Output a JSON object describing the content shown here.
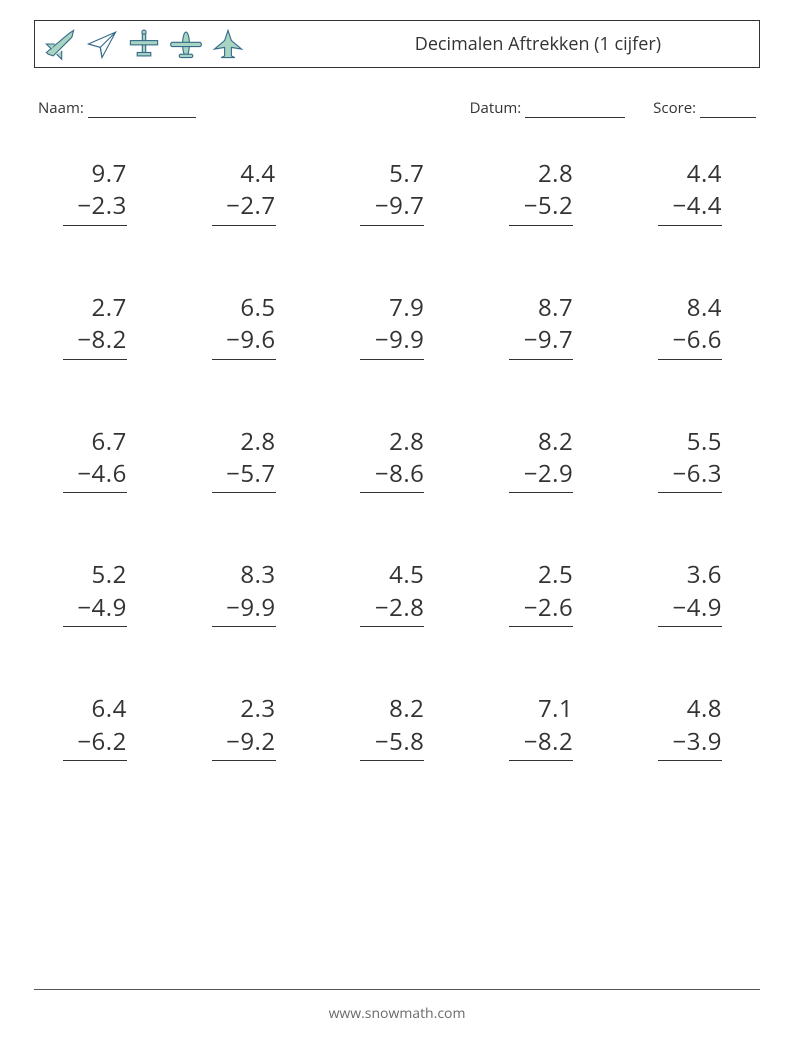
{
  "header": {
    "title": "Decimalen Aftrekken (1 cijfer)",
    "icon_colors": {
      "stroke": "#356a8a",
      "fill": "#a9d4c2",
      "fill2": "#bde0d0"
    }
  },
  "meta": {
    "name_label": "Naam:",
    "date_label": "Datum:",
    "score_label": "Score:"
  },
  "problems": [
    {
      "a": "9.7",
      "b": "−2.3"
    },
    {
      "a": "4.4",
      "b": "−2.7"
    },
    {
      "a": "5.7",
      "b": "−9.7"
    },
    {
      "a": "2.8",
      "b": "−5.2"
    },
    {
      "a": "4.4",
      "b": "−4.4"
    },
    {
      "a": "2.7",
      "b": "−8.2"
    },
    {
      "a": "6.5",
      "b": "−9.6"
    },
    {
      "a": "7.9",
      "b": "−9.9"
    },
    {
      "a": "8.7",
      "b": "−9.7"
    },
    {
      "a": "8.4",
      "b": "−6.6"
    },
    {
      "a": "6.7",
      "b": "−4.6"
    },
    {
      "a": "2.8",
      "b": "−5.7"
    },
    {
      "a": "2.8",
      "b": "−8.6"
    },
    {
      "a": "8.2",
      "b": "−2.9"
    },
    {
      "a": "5.5",
      "b": "−6.3"
    },
    {
      "a": "5.2",
      "b": "−4.9"
    },
    {
      "a": "8.3",
      "b": "−9.9"
    },
    {
      "a": "4.5",
      "b": "−2.8"
    },
    {
      "a": "2.5",
      "b": "−2.6"
    },
    {
      "a": "3.6",
      "b": "−4.9"
    },
    {
      "a": "6.4",
      "b": "−6.2"
    },
    {
      "a": "2.3",
      "b": "−9.2"
    },
    {
      "a": "8.2",
      "b": "−5.8"
    },
    {
      "a": "7.1",
      "b": "−8.2"
    },
    {
      "a": "4.8",
      "b": "−3.9"
    }
  ],
  "footer": {
    "text": "www.snowmath.com"
  },
  "style": {
    "text_color": "#333333",
    "border_color": "#333333",
    "number_fontsize": 24,
    "title_fontsize": 18,
    "meta_fontsize": 15,
    "footer_color": "#6a6a6a",
    "background": "#ffffff",
    "columns": 5,
    "rows": 5
  }
}
